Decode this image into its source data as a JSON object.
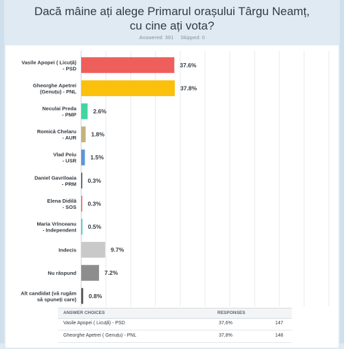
{
  "header": {
    "title_line1": "Dacă mâine ați alege Primarul orașului Târgu Neamț,",
    "title_line2": "cu cine ați vota?",
    "answered": "Answered: 391",
    "skipped": "Skipped: 0"
  },
  "chart_data": {
    "type": "bar",
    "orientation": "horizontal",
    "categories": [
      [
        "Vasile Apopei ( Licuță)",
        "- PSD"
      ],
      [
        "Gheorghe Apetrei",
        "(Genuțu) - PNL"
      ],
      [
        "Neculai Preda",
        "- PMP"
      ],
      [
        "Romică Chelaru",
        "- AUR"
      ],
      [
        "Vlad Peiu",
        "- USR"
      ],
      [
        "Daniel Gavriloaia",
        "- PRM"
      ],
      [
        "Elena Didilă",
        "- SOS"
      ],
      [
        "Maria Vrînceanu",
        "- Independent"
      ],
      [
        "Indecis"
      ],
      [
        "Nu răspund"
      ],
      [
        "Alt candidat (vă rugăm",
        "să spuneți care)"
      ]
    ],
    "values": [
      37.6,
      37.8,
      2.6,
      1.8,
      1.5,
      0.3,
      0.3,
      0.5,
      9.7,
      7.2,
      0.8
    ],
    "value_labels": [
      "37.6%",
      "37.8%",
      "2.6%",
      "1.8%",
      "1.5%",
      "0.3%",
      "0.3%",
      "0.5%",
      "9.7%",
      "7.2%",
      "0.8%"
    ],
    "colors": [
      "#ee5f5b",
      "#fbc00b",
      "#3fd6a1",
      "#c5b27a",
      "#5d95d8",
      "#3d4a55",
      "#ee5f5b",
      "#4fc6c7",
      "#c9c9c9",
      "#8d8d8d",
      "#5a5a5a"
    ],
    "xlim": [
      0,
      100
    ],
    "grid": true
  },
  "table": {
    "col_choices": "ANSWER CHOICES",
    "col_responses": "RESPONSES",
    "rows": [
      {
        "name": "Vasile Apopei ( Licuță) - PSD",
        "pct": "37,6%",
        "count": "147"
      },
      {
        "name": "Gheorghe Apetrei ( Genuțu) - PNL",
        "pct": "37,8%",
        "count": "148"
      }
    ]
  }
}
